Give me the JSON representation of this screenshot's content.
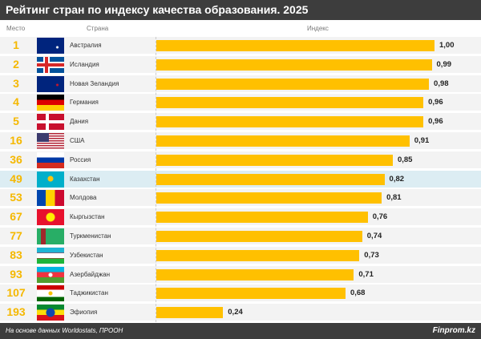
{
  "title": "Рейтинг стран по индексу качества образования. 2025",
  "footer": {
    "source": "На основе данных Worldostats, ПРООН",
    "brand": "Finprom.kz"
  },
  "chart_data": {
    "type": "bar",
    "orientation": "horizontal",
    "title": "Рейтинг стран по индексу качества образования. 2025",
    "columns": {
      "rank": "Место",
      "country": "Страна",
      "index": "Индекс"
    },
    "xlim": [
      0,
      1
    ],
    "bar_color": "#ffc000",
    "highlight_color": "#dcedf3",
    "rows": [
      {
        "rank": "1",
        "country": "Австралия",
        "value": 1.0,
        "label": "1,00",
        "flag": "au"
      },
      {
        "rank": "2",
        "country": "Исландия",
        "value": 0.99,
        "label": "0,99",
        "flag": "is"
      },
      {
        "rank": "3",
        "country": "Новая Зеландия",
        "value": 0.98,
        "label": "0,98",
        "flag": "nz"
      },
      {
        "rank": "4",
        "country": "Германия",
        "value": 0.96,
        "label": "0,96",
        "flag": "de"
      },
      {
        "rank": "5",
        "country": "Дания",
        "value": 0.96,
        "label": "0,96",
        "flag": "dk"
      },
      {
        "rank": "16",
        "country": "США",
        "value": 0.91,
        "label": "0,91",
        "flag": "us"
      },
      {
        "rank": "36",
        "country": "Россия",
        "value": 0.85,
        "label": "0,85",
        "flag": "ru"
      },
      {
        "rank": "49",
        "country": "Казахстан",
        "value": 0.82,
        "label": "0,82",
        "flag": "kz",
        "highlight": true
      },
      {
        "rank": "53",
        "country": "Молдова",
        "value": 0.81,
        "label": "0,81",
        "flag": "md"
      },
      {
        "rank": "67",
        "country": "Кыргызстан",
        "value": 0.76,
        "label": "0,76",
        "flag": "kg"
      },
      {
        "rank": "77",
        "country": "Туркменистан",
        "value": 0.74,
        "label": "0,74",
        "flag": "tm"
      },
      {
        "rank": "83",
        "country": "Узбекистан",
        "value": 0.73,
        "label": "0,73",
        "flag": "uz"
      },
      {
        "rank": "93",
        "country": "Азербайджан",
        "value": 0.71,
        "label": "0,71",
        "flag": "az"
      },
      {
        "rank": "107",
        "country": "Таджикистан",
        "value": 0.68,
        "label": "0,68",
        "flag": "tj"
      },
      {
        "rank": "193",
        "country": "Эфиопия",
        "value": 0.24,
        "label": "0,24",
        "flag": "et"
      }
    ]
  }
}
